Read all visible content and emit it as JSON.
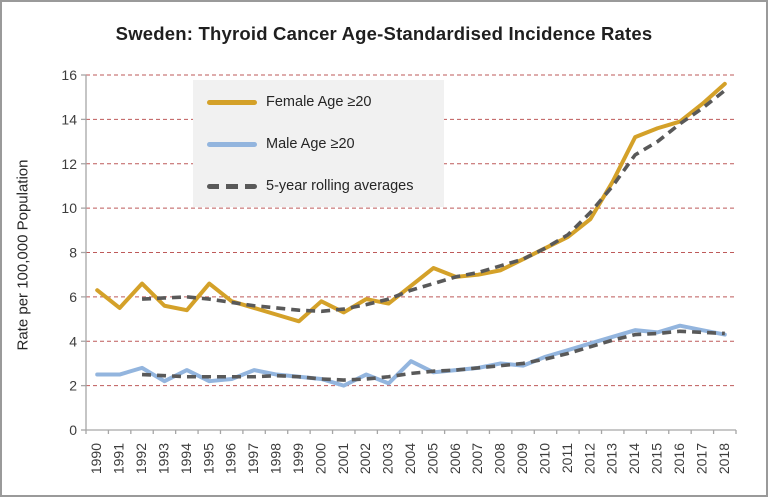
{
  "chart_data": {
    "type": "line",
    "title": "Sweden: Thyroid Cancer Age-Standardised Incidence Rates",
    "xlabel": "",
    "ylabel": "Rate per 100,000 Population",
    "ylim": [
      0,
      16
    ],
    "yticks": [
      0,
      2,
      4,
      6,
      8,
      10,
      12,
      14,
      16
    ],
    "grid": "horizontal-dashed",
    "legend_position": "inside-upper-left",
    "x": [
      1990,
      1991,
      1992,
      1993,
      1994,
      1995,
      1996,
      1997,
      1998,
      1999,
      2000,
      2001,
      2002,
      2003,
      2004,
      2005,
      2006,
      2007,
      2008,
      2009,
      2010,
      2011,
      2012,
      2013,
      2014,
      2015,
      2016,
      2017,
      2018
    ],
    "series": [
      {
        "id": "female",
        "name": "Female Age ≥20",
        "color": "#D4A129",
        "style": "solid",
        "width": 4,
        "values": [
          6.3,
          5.5,
          6.6,
          5.6,
          5.4,
          6.6,
          5.8,
          5.5,
          5.2,
          4.9,
          5.8,
          5.3,
          5.9,
          5.7,
          6.5,
          7.3,
          6.9,
          7.0,
          7.2,
          7.7,
          8.2,
          8.7,
          9.5,
          11.2,
          13.2,
          13.6,
          13.9,
          14.7,
          15.6
        ]
      },
      {
        "id": "male",
        "name": "Male Age ≥20",
        "color": "#93B5DE",
        "style": "solid",
        "width": 4,
        "values": [
          2.5,
          2.5,
          2.8,
          2.2,
          2.7,
          2.2,
          2.3,
          2.7,
          2.5,
          2.4,
          2.3,
          2.0,
          2.5,
          2.1,
          3.1,
          2.6,
          2.7,
          2.8,
          3.0,
          2.9,
          3.3,
          3.6,
          3.9,
          4.2,
          4.5,
          4.4,
          4.7,
          4.5,
          4.3
        ]
      },
      {
        "id": "female-rolling",
        "name": "5-year rolling averages",
        "color": "#595959",
        "style": "dashed",
        "width": 3.6,
        "values": [
          null,
          null,
          5.9,
          5.95,
          6.0,
          5.9,
          5.75,
          5.6,
          5.5,
          5.4,
          5.35,
          5.45,
          5.65,
          5.9,
          6.3,
          6.6,
          6.9,
          7.1,
          7.4,
          7.7,
          8.2,
          8.8,
          9.8,
          11.0,
          12.4,
          13.0,
          13.8,
          14.5,
          15.3
        ]
      },
      {
        "id": "male-rolling",
        "name": "5-year rolling averages",
        "color": "#595959",
        "style": "dashed",
        "width": 3.6,
        "values": [
          null,
          null,
          2.5,
          2.45,
          2.4,
          2.4,
          2.4,
          2.4,
          2.45,
          2.4,
          2.3,
          2.25,
          2.3,
          2.4,
          2.55,
          2.65,
          2.7,
          2.8,
          2.9,
          3.0,
          3.2,
          3.45,
          3.75,
          4.05,
          4.3,
          4.35,
          4.45,
          4.4,
          4.35
        ]
      }
    ],
    "legend": [
      {
        "label": "Female Age ≥20",
        "color": "#D4A129",
        "style": "solid"
      },
      {
        "label": "Male Age ≥20",
        "color": "#93B5DE",
        "style": "solid"
      },
      {
        "label": "5-year rolling averages",
        "color": "#595959",
        "style": "dashed"
      }
    ],
    "colors": {
      "gridline": "#BE5A5A",
      "axis": "#A6A6A6",
      "tick_label": "#3D3D3D",
      "title": "#1F1F1F",
      "legend_background": "#F1F1F1"
    }
  }
}
